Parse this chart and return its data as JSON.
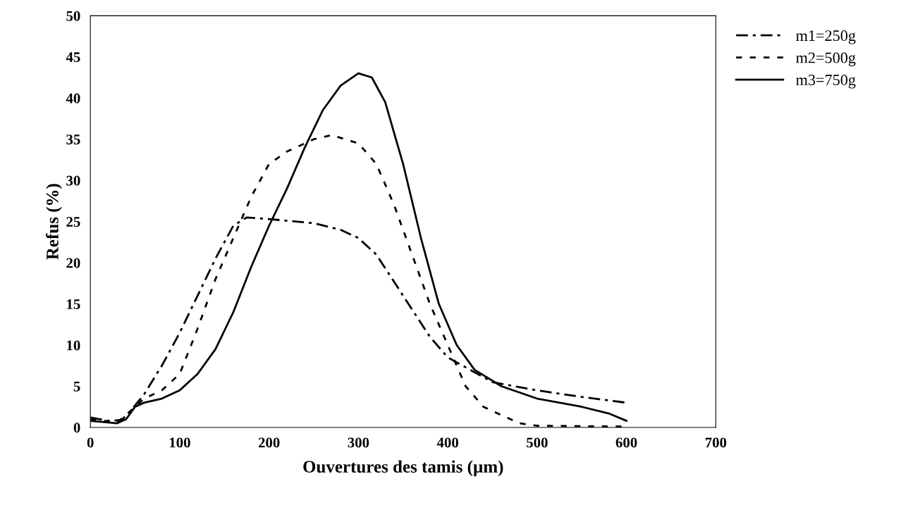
{
  "chart_data": {
    "type": "line",
    "xlabel": "Ouvertures des tamis (µm)",
    "ylabel": "Refus (%)",
    "xlim": [
      0,
      700
    ],
    "xticks": [
      0,
      100,
      200,
      300,
      400,
      500,
      600,
      700
    ],
    "ylim": [
      0,
      50
    ],
    "yticks": [
      0,
      5,
      10,
      15,
      20,
      25,
      30,
      35,
      40,
      45,
      50
    ],
    "grid": false,
    "legend": "top right",
    "marker": "none",
    "series": [
      {
        "name": "m1=250g",
        "color": "#000000",
        "line_style": "dashdot",
        "x": [
          0,
          20,
          35,
          45,
          60,
          80,
          100,
          120,
          140,
          160,
          175,
          200,
          250,
          280,
          300,
          320,
          350,
          380,
          400,
          450,
          500,
          550,
          600
        ],
        "values": [
          1.2,
          0.8,
          0.9,
          2,
          4,
          7.5,
          11.5,
          16,
          20.5,
          24.5,
          25.5,
          25.3,
          24.8,
          24,
          23,
          21,
          16,
          11,
          8.5,
          5.5,
          4.5,
          3.7,
          3
        ]
      },
      {
        "name": "m2=500g",
        "color": "#000000",
        "line_style": "dotted",
        "x": [
          0,
          30,
          45,
          60,
          80,
          100,
          120,
          140,
          160,
          180,
          200,
          220,
          250,
          270,
          300,
          320,
          340,
          360,
          380,
          400,
          420,
          440,
          460,
          480,
          500,
          600
        ],
        "values": [
          1,
          0.6,
          2,
          3.5,
          4.5,
          6.5,
          12,
          18,
          23,
          28,
          32,
          33.5,
          35,
          35.5,
          34.5,
          32,
          27,
          21,
          15,
          10,
          5,
          2.5,
          1.5,
          0.5,
          0.2,
          0.1
        ]
      },
      {
        "name": "m3=750g",
        "color": "#000000",
        "line_style": "solid",
        "x": [
          0,
          30,
          40,
          50,
          60,
          80,
          100,
          120,
          140,
          160,
          180,
          200,
          220,
          240,
          260,
          280,
          300,
          315,
          330,
          350,
          370,
          390,
          410,
          430,
          460,
          500,
          550,
          580,
          600
        ],
        "values": [
          0.8,
          0.5,
          1,
          2.5,
          3,
          3.5,
          4.5,
          6.5,
          9.5,
          14,
          19.5,
          24.5,
          29,
          34,
          38.5,
          41.5,
          43,
          42.5,
          39.5,
          32,
          23,
          15,
          10,
          7,
          5,
          3.5,
          2.5,
          1.7,
          0.8
        ]
      }
    ]
  }
}
